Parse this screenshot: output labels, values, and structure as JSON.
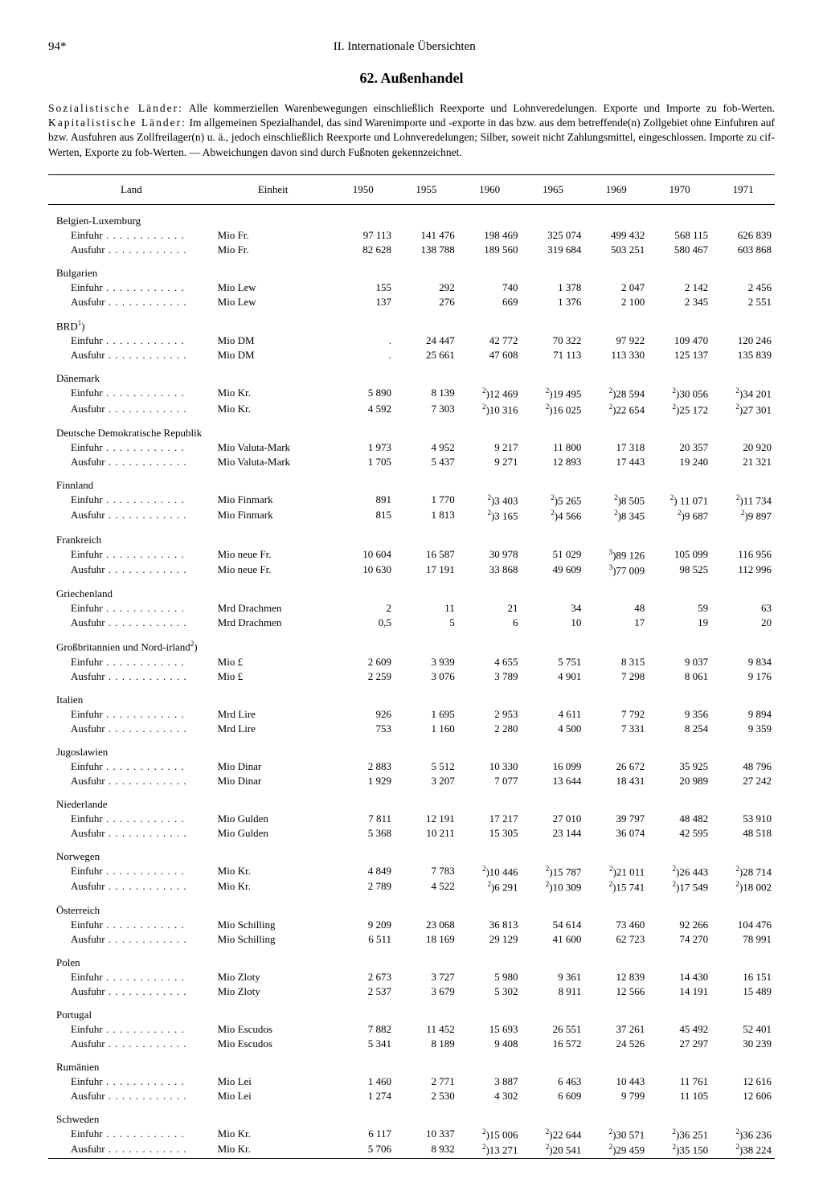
{
  "page_number": "94*",
  "section_header": "II. Internationale Übersichten",
  "title": "62. Außenhandel",
  "intro_html": "<span class='sp'>Sozialistische Länder:</span> Alle kommerziellen Warenbewegungen einschließlich Reexporte und Lohnveredelungen. Exporte und Importe zu fob-Werten. <span class='sp'>Kapitalistische Länder:</span> Im allgemeinen Spezialhandel, das sind Warenimporte und -exporte in das bzw. aus dem betreffende(n) Zollgebiet ohne Einfuhren auf bzw. Ausfuhren aus Zollfreilager(n) u. ä., jedoch einschließlich Reexporte und Lohnveredelungen; Silber, soweit nicht Zahlungsmittel, eingeschlossen. Importe zu cif-Werten, Exporte zu fob-Werten. — Abweichungen davon sind durch Fußnoten gekennzeichnet.",
  "columns": {
    "land": "Land",
    "unit": "Einheit",
    "years": [
      "1950",
      "1955",
      "1960",
      "1965",
      "1969",
      "1970",
      "1971"
    ]
  },
  "row_labels": {
    "einfuhr": "Einfuhr",
    "ausfuhr": "Ausfuhr"
  },
  "countries": [
    {
      "name": "Belgien-Luxemburg",
      "unit": "Mio Fr.",
      "einfuhr": [
        "97 113",
        "141 476",
        "198 469",
        "325 074",
        "499 432",
        "568 115",
        "626 839"
      ],
      "ausfuhr": [
        "82 628",
        "138 788",
        "189 560",
        "319 684",
        "503 251",
        "580 467",
        "603 868"
      ]
    },
    {
      "name": "Bulgarien",
      "unit": "Mio Lew",
      "einfuhr": [
        "155",
        "292",
        "740",
        "1 378",
        "2 047",
        "2 142",
        "2 456"
      ],
      "ausfuhr": [
        "137",
        "276",
        "669",
        "1 376",
        "2 100",
        "2 345",
        "2 551"
      ]
    },
    {
      "name": "BRD<sup>1</sup>)",
      "unit": "Mio DM",
      "einfuhr": [
        ".",
        "24 447",
        "42 772",
        "70 322",
        "97 922",
        "109 470",
        "120 246"
      ],
      "ausfuhr": [
        ".",
        "25 661",
        "47 608",
        "71 113",
        "113 330",
        "125 137",
        "135 839"
      ]
    },
    {
      "name": "Dänemark",
      "unit": "Mio Kr.",
      "einfuhr": [
        "5 890",
        "8 139",
        "<sup>2</sup>)12 469",
        "<sup>2</sup>)19 495",
        "<sup>2</sup>)28 594",
        "<sup>2</sup>)30 056",
        "<sup>2</sup>)34 201"
      ],
      "ausfuhr": [
        "4 592",
        "7 303",
        "<sup>2</sup>)10 316",
        "<sup>2</sup>)16 025",
        "<sup>2</sup>)22 654",
        "<sup>2</sup>)25 172",
        "<sup>2</sup>)27 301"
      ]
    },
    {
      "name": "Deutsche Demokratische Republik",
      "name2": true,
      "unit": "Mio Valuta-Mark",
      "einfuhr": [
        "1 973",
        "4 952",
        "9 217",
        "11 800",
        "17 318",
        "20 357",
        "20 920"
      ],
      "ausfuhr": [
        "1 705",
        "5 437",
        "9 271",
        "12 893",
        "17 443",
        "19 240",
        "21 321"
      ]
    },
    {
      "name": "Finnland",
      "unit": "Mio Finmark",
      "einfuhr": [
        "891",
        "1 770",
        "<sup>2</sup>)3 403",
        "<sup>2</sup>)5 265",
        "<sup>2</sup>)8 505",
        "<sup>2</sup>) 11 071",
        "<sup>2</sup>)11 734"
      ],
      "ausfuhr": [
        "815",
        "1 813",
        "<sup>2</sup>)3 165",
        "<sup>2</sup>)4 566",
        "<sup>2</sup>)8 345",
        "<sup>2</sup>)9 687",
        "<sup>2</sup>)9 897"
      ]
    },
    {
      "name": "Frankreich",
      "unit": "Mio neue Fr.",
      "einfuhr": [
        "10 604",
        "16 587",
        "30 978",
        "51 029",
        "<sup>3</sup>)89 126",
        "105 099",
        "116 956"
      ],
      "ausfuhr": [
        "10 630",
        "17 191",
        "33 868",
        "49 609",
        "<sup>3</sup>)77 009",
        "98 525",
        "112 996"
      ]
    },
    {
      "name": "Griechenland",
      "unit": "Mrd Drachmen",
      "einfuhr": [
        "2",
        "11",
        "21",
        "34",
        "48",
        "59",
        "63"
      ],
      "ausfuhr": [
        "0,5",
        "5",
        "6",
        "10",
        "17",
        "19",
        "20"
      ]
    },
    {
      "name": "Großbritannien und Nord-irland<sup>2</sup>)",
      "name2": true,
      "unit": "Mio £",
      "einfuhr": [
        "2 609",
        "3 939",
        "4 655",
        "5 751",
        "8 315",
        "9 037",
        "9 834"
      ],
      "ausfuhr": [
        "2 259",
        "3 076",
        "3 789",
        "4 901",
        "7 298",
        "8 061",
        "9 176"
      ]
    },
    {
      "name": "Italien",
      "unit": "Mrd Lire",
      "einfuhr": [
        "926",
        "1 695",
        "2 953",
        "4 611",
        "7 792",
        "9 356",
        "9 894"
      ],
      "ausfuhr": [
        "753",
        "1 160",
        "2 280",
        "4 500",
        "7 331",
        "8 254",
        "9 359"
      ]
    },
    {
      "name": "Jugoslawien",
      "unit": "Mio Dinar",
      "einfuhr": [
        "2 883",
        "5 512",
        "10 330",
        "16 099",
        "26 672",
        "35 925",
        "48 796"
      ],
      "ausfuhr": [
        "1 929",
        "3 207",
        "7 077",
        "13 644",
        "18 431",
        "20 989",
        "27 242"
      ]
    },
    {
      "name": "Niederlande",
      "unit": "Mio Gulden",
      "einfuhr": [
        "7 811",
        "12 191",
        "17 217",
        "27 010",
        "39 797",
        "48 482",
        "53 910"
      ],
      "ausfuhr": [
        "5 368",
        "10 211",
        "15 305",
        "23 144",
        "36 074",
        "42 595",
        "48 518"
      ]
    },
    {
      "name": "Norwegen",
      "unit": "Mio Kr.",
      "einfuhr": [
        "4 849",
        "7 783",
        "<sup>2</sup>)10 446",
        "<sup>2</sup>)15 787",
        "<sup>2</sup>)21 011",
        "<sup>2</sup>)26 443",
        "<sup>2</sup>)28 714"
      ],
      "ausfuhr": [
        "2 789",
        "4 522",
        "<sup>2</sup>)6 291",
        "<sup>2</sup>)10 309",
        "<sup>2</sup>)15 741",
        "<sup>2</sup>)17 549",
        "<sup>2</sup>)18 002"
      ]
    },
    {
      "name": "Österreich",
      "unit": "Mio Schilling",
      "einfuhr": [
        "9 209",
        "23 068",
        "36 813",
        "54 614",
        "73 460",
        "92 266",
        "104 476"
      ],
      "ausfuhr": [
        "6 511",
        "18 169",
        "29 129",
        "41 600",
        "62 723",
        "74 270",
        "78 991"
      ]
    },
    {
      "name": "Polen",
      "unit": "Mio Zloty",
      "einfuhr": [
        "2 673",
        "3 727",
        "5 980",
        "9 361",
        "12 839",
        "14 430",
        "16 151"
      ],
      "ausfuhr": [
        "2 537",
        "3 679",
        "5 302",
        "8 911",
        "12 566",
        "14 191",
        "15 489"
      ]
    },
    {
      "name": "Portugal",
      "unit": "Mio Escudos",
      "einfuhr": [
        "7 882",
        "11 452",
        "15 693",
        "26 551",
        "37 261",
        "45 492",
        "52 401"
      ],
      "ausfuhr": [
        "5 341",
        "8 189",
        "9 408",
        "16 572",
        "24 526",
        "27 297",
        "30 239"
      ]
    },
    {
      "name": "Rumänien",
      "unit": "Mio Lei",
      "einfuhr": [
        "1 460",
        "2 771",
        "3 887",
        "6 463",
        "10 443",
        "11 761",
        "12 616"
      ],
      "ausfuhr": [
        "1 274",
        "2 530",
        "4 302",
        "6 609",
        "9 799",
        "11 105",
        "12 606"
      ]
    },
    {
      "name": "Schweden",
      "unit": "Mio Kr.",
      "einfuhr": [
        "6 117",
        "10 337",
        "<sup>2</sup>)15 006",
        "<sup>2</sup>)22 644",
        "<sup>2</sup>)30 571",
        "<sup>2</sup>)36 251",
        "<sup>2</sup>)36 236"
      ],
      "ausfuhr": [
        "5 706",
        "8 932",
        "<sup>2</sup>)13 271",
        "<sup>2</sup>)20 541",
        "<sup>2</sup>)29 459",
        "<sup>2</sup>)35 150",
        "<sup>2</sup>)38 224"
      ]
    }
  ]
}
